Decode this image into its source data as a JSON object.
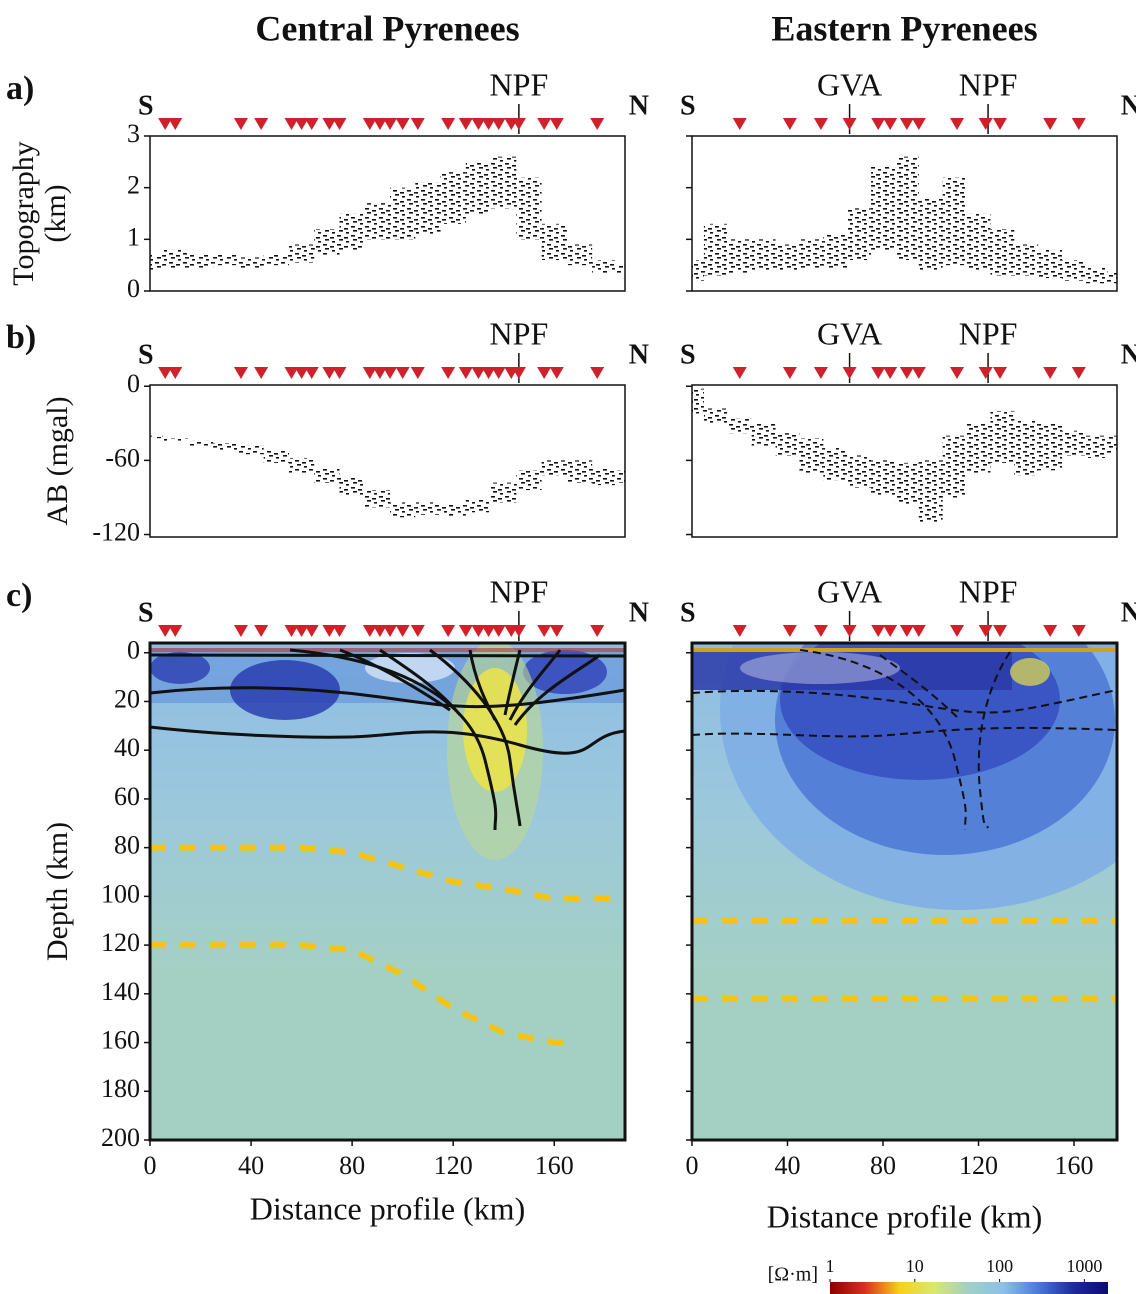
{
  "chart_data": [
    {
      "type": "band",
      "title": "Central Pyrenees",
      "panel_label": "a)",
      "ylabel_lines": [
        "Topography",
        "(km)"
      ],
      "ends": [
        "S",
        "N"
      ],
      "stations": [
        6,
        10,
        36,
        44,
        56,
        60,
        64,
        71,
        75,
        87,
        91,
        95,
        100,
        106,
        118,
        125,
        130,
        134,
        138,
        143,
        146,
        156,
        161,
        177
      ],
      "markers": [
        {
          "label": "NPF",
          "x": 146
        }
      ],
      "xlim": [
        0,
        188
      ],
      "ylim": [
        0,
        3
      ],
      "yticks": [
        0,
        1,
        2,
        3
      ],
      "show_tick_labels": true,
      "color": "#111111",
      "x": [
        0,
        10,
        20,
        30,
        40,
        50,
        60,
        70,
        80,
        90,
        100,
        110,
        120,
        130,
        140,
        150,
        160,
        170,
        180,
        188
      ],
      "lower": [
        0.4,
        0.45,
        0.45,
        0.5,
        0.45,
        0.5,
        0.55,
        0.7,
        0.8,
        1.0,
        1.0,
        1.1,
        1.3,
        1.5,
        1.6,
        1.0,
        0.6,
        0.5,
        0.35,
        0.35
      ],
      "upper": [
        0.7,
        0.8,
        0.7,
        0.7,
        0.65,
        0.7,
        0.9,
        1.2,
        1.5,
        1.7,
        2.0,
        2.1,
        2.3,
        2.5,
        2.6,
        2.2,
        1.3,
        0.9,
        0.6,
        0.5
      ]
    },
    {
      "type": "band",
      "title": "Eastern Pyrenees",
      "ends": [
        "S",
        "N"
      ],
      "stations": [
        20,
        41,
        54,
        66,
        78,
        83,
        90,
        95,
        111,
        123,
        129,
        150,
        162
      ],
      "markers": [
        {
          "label": "GVA",
          "x": 66
        },
        {
          "label": "NPF",
          "x": 124
        }
      ],
      "xlim": [
        0,
        178
      ],
      "ylim": [
        0,
        3
      ],
      "yticks": [
        0,
        1,
        2,
        3
      ],
      "show_tick_labels": false,
      "color": "#111111",
      "x": [
        0,
        10,
        20,
        30,
        40,
        50,
        60,
        70,
        80,
        90,
        100,
        110,
        120,
        130,
        140,
        150,
        160,
        170,
        178
      ],
      "lower": [
        0.2,
        0.3,
        0.35,
        0.4,
        0.4,
        0.45,
        0.45,
        0.6,
        0.8,
        0.6,
        0.4,
        0.5,
        0.4,
        0.3,
        0.3,
        0.25,
        0.2,
        0.15,
        0.15
      ],
      "upper": [
        0.6,
        1.3,
        1.0,
        1.0,
        0.9,
        1.0,
        1.1,
        1.6,
        2.4,
        2.6,
        1.8,
        2.2,
        1.5,
        1.2,
        0.9,
        0.8,
        0.6,
        0.45,
        0.35
      ]
    },
    {
      "type": "band",
      "panel_label": "b)",
      "ylabel_lines": [
        "AB (mgal)"
      ],
      "ends": [
        "S",
        "N"
      ],
      "stations": [
        6,
        10,
        36,
        44,
        56,
        60,
        64,
        71,
        75,
        87,
        91,
        95,
        100,
        106,
        118,
        125,
        130,
        134,
        138,
        143,
        146,
        156,
        161,
        177
      ],
      "markers": [
        {
          "label": "NPF",
          "x": 146
        }
      ],
      "xlim": [
        0,
        188
      ],
      "ylim": [
        -122,
        1
      ],
      "yticks": [
        -120,
        -60,
        0
      ],
      "show_tick_labels": true,
      "color": "#111111",
      "x": [
        0,
        10,
        20,
        30,
        40,
        50,
        60,
        70,
        80,
        90,
        100,
        110,
        120,
        130,
        140,
        150,
        160,
        170,
        180,
        188
      ],
      "lower": [
        -42,
        -45,
        -48,
        -52,
        -55,
        -62,
        -70,
        -78,
        -88,
        -98,
        -106,
        -104,
        -105,
        -102,
        -94,
        -84,
        -72,
        -78,
        -80,
        -78
      ],
      "upper": [
        -40,
        -42,
        -44,
        -46,
        -48,
        -52,
        -58,
        -66,
        -74,
        -84,
        -94,
        -94,
        -96,
        -92,
        -78,
        -68,
        -60,
        -60,
        -66,
        -68
      ]
    },
    {
      "type": "band",
      "ends": [
        "S",
        "N"
      ],
      "stations": [
        20,
        41,
        54,
        66,
        78,
        83,
        90,
        95,
        111,
        123,
        129,
        150,
        162
      ],
      "markers": [
        {
          "label": "GVA",
          "x": 66
        },
        {
          "label": "NPF",
          "x": 124
        }
      ],
      "xlim": [
        0,
        178
      ],
      "ylim": [
        -122,
        1
      ],
      "yticks": [
        -120,
        -60,
        0
      ],
      "show_tick_labels": false,
      "color": "#111111",
      "x": [
        0,
        10,
        20,
        30,
        40,
        50,
        60,
        70,
        80,
        90,
        100,
        110,
        120,
        130,
        140,
        150,
        160,
        170,
        178
      ],
      "lower": [
        -22,
        -30,
        -38,
        -48,
        -56,
        -70,
        -76,
        -82,
        -88,
        -96,
        -110,
        -90,
        -70,
        -62,
        -72,
        -68,
        -56,
        -58,
        -54
      ],
      "upper": [
        -2,
        -18,
        -26,
        -30,
        -38,
        -42,
        -50,
        -56,
        -60,
        -62,
        -60,
        -40,
        -30,
        -20,
        -28,
        -30,
        -36,
        -40,
        -40
      ]
    },
    {
      "type": "line",
      "panel_label": "c)",
      "ylabel_lines": [
        "Depth (km)"
      ],
      "xlabel": "Distance profile (km)",
      "ends": [
        "S",
        "N"
      ],
      "stations": [
        6,
        10,
        36,
        44,
        56,
        60,
        64,
        71,
        75,
        87,
        91,
        95,
        100,
        106,
        118,
        125,
        130,
        134,
        138,
        143,
        146,
        156,
        161,
        177
      ],
      "markers": [
        {
          "label": "NPF",
          "x": 146
        }
      ],
      "xlim": [
        0,
        188
      ],
      "ylim": [
        -4,
        200
      ],
      "y_inverted": true,
      "yticks": [
        0,
        20,
        40,
        60,
        80,
        100,
        120,
        140,
        160,
        180,
        200
      ],
      "show_tick_labels": true,
      "xticks": [
        0,
        40,
        80,
        120,
        160
      ],
      "series": [
        {
          "color": "#f2c418",
          "x": [
            0,
            60,
            80,
            100,
            120,
            140,
            160,
            188
          ],
          "values": [
            80,
            80,
            82,
            88,
            94,
            97,
            101,
            101
          ]
        },
        {
          "color": "#f2c418",
          "x": [
            0,
            60,
            80,
            100,
            120,
            140,
            160,
            168
          ],
          "values": [
            120,
            120,
            122,
            132,
            146,
            156,
            160,
            160
          ]
        }
      ]
    },
    {
      "type": "line",
      "xlabel": "Distance profile (km)",
      "ends": [
        "S",
        "N"
      ],
      "stations": [
        20,
        41,
        54,
        66,
        78,
        83,
        90,
        95,
        111,
        123,
        129,
        150,
        162
      ],
      "markers": [
        {
          "label": "GVA",
          "x": 66
        },
        {
          "label": "NPF",
          "x": 124
        }
      ],
      "xlim": [
        0,
        178
      ],
      "ylim": [
        -4,
        200
      ],
      "y_inverted": true,
      "yticks": [
        0,
        20,
        40,
        60,
        80,
        100,
        120,
        140,
        160,
        180,
        200
      ],
      "show_tick_labels": false,
      "xticks": [
        0,
        40,
        80,
        120,
        160
      ],
      "series": [
        {
          "color": "#f2c418",
          "x": [
            0,
            178
          ],
          "values": [
            110,
            110
          ]
        },
        {
          "color": "#f2c418",
          "x": [
            0,
            178
          ],
          "values": [
            142,
            142
          ]
        }
      ]
    }
  ],
  "colorbar": {
    "label": "[Ω·m]",
    "lim": [
      1,
      1900
    ],
    "log": true,
    "ticks": [
      1,
      10,
      100,
      1000
    ],
    "colors": [
      "#8b0000",
      "#d7301f",
      "#f7d01c",
      "#d8e870",
      "#9fd0c8",
      "#8cc0e8",
      "#4a78d8",
      "#1e2a9a",
      "#0c0c70"
    ]
  }
}
